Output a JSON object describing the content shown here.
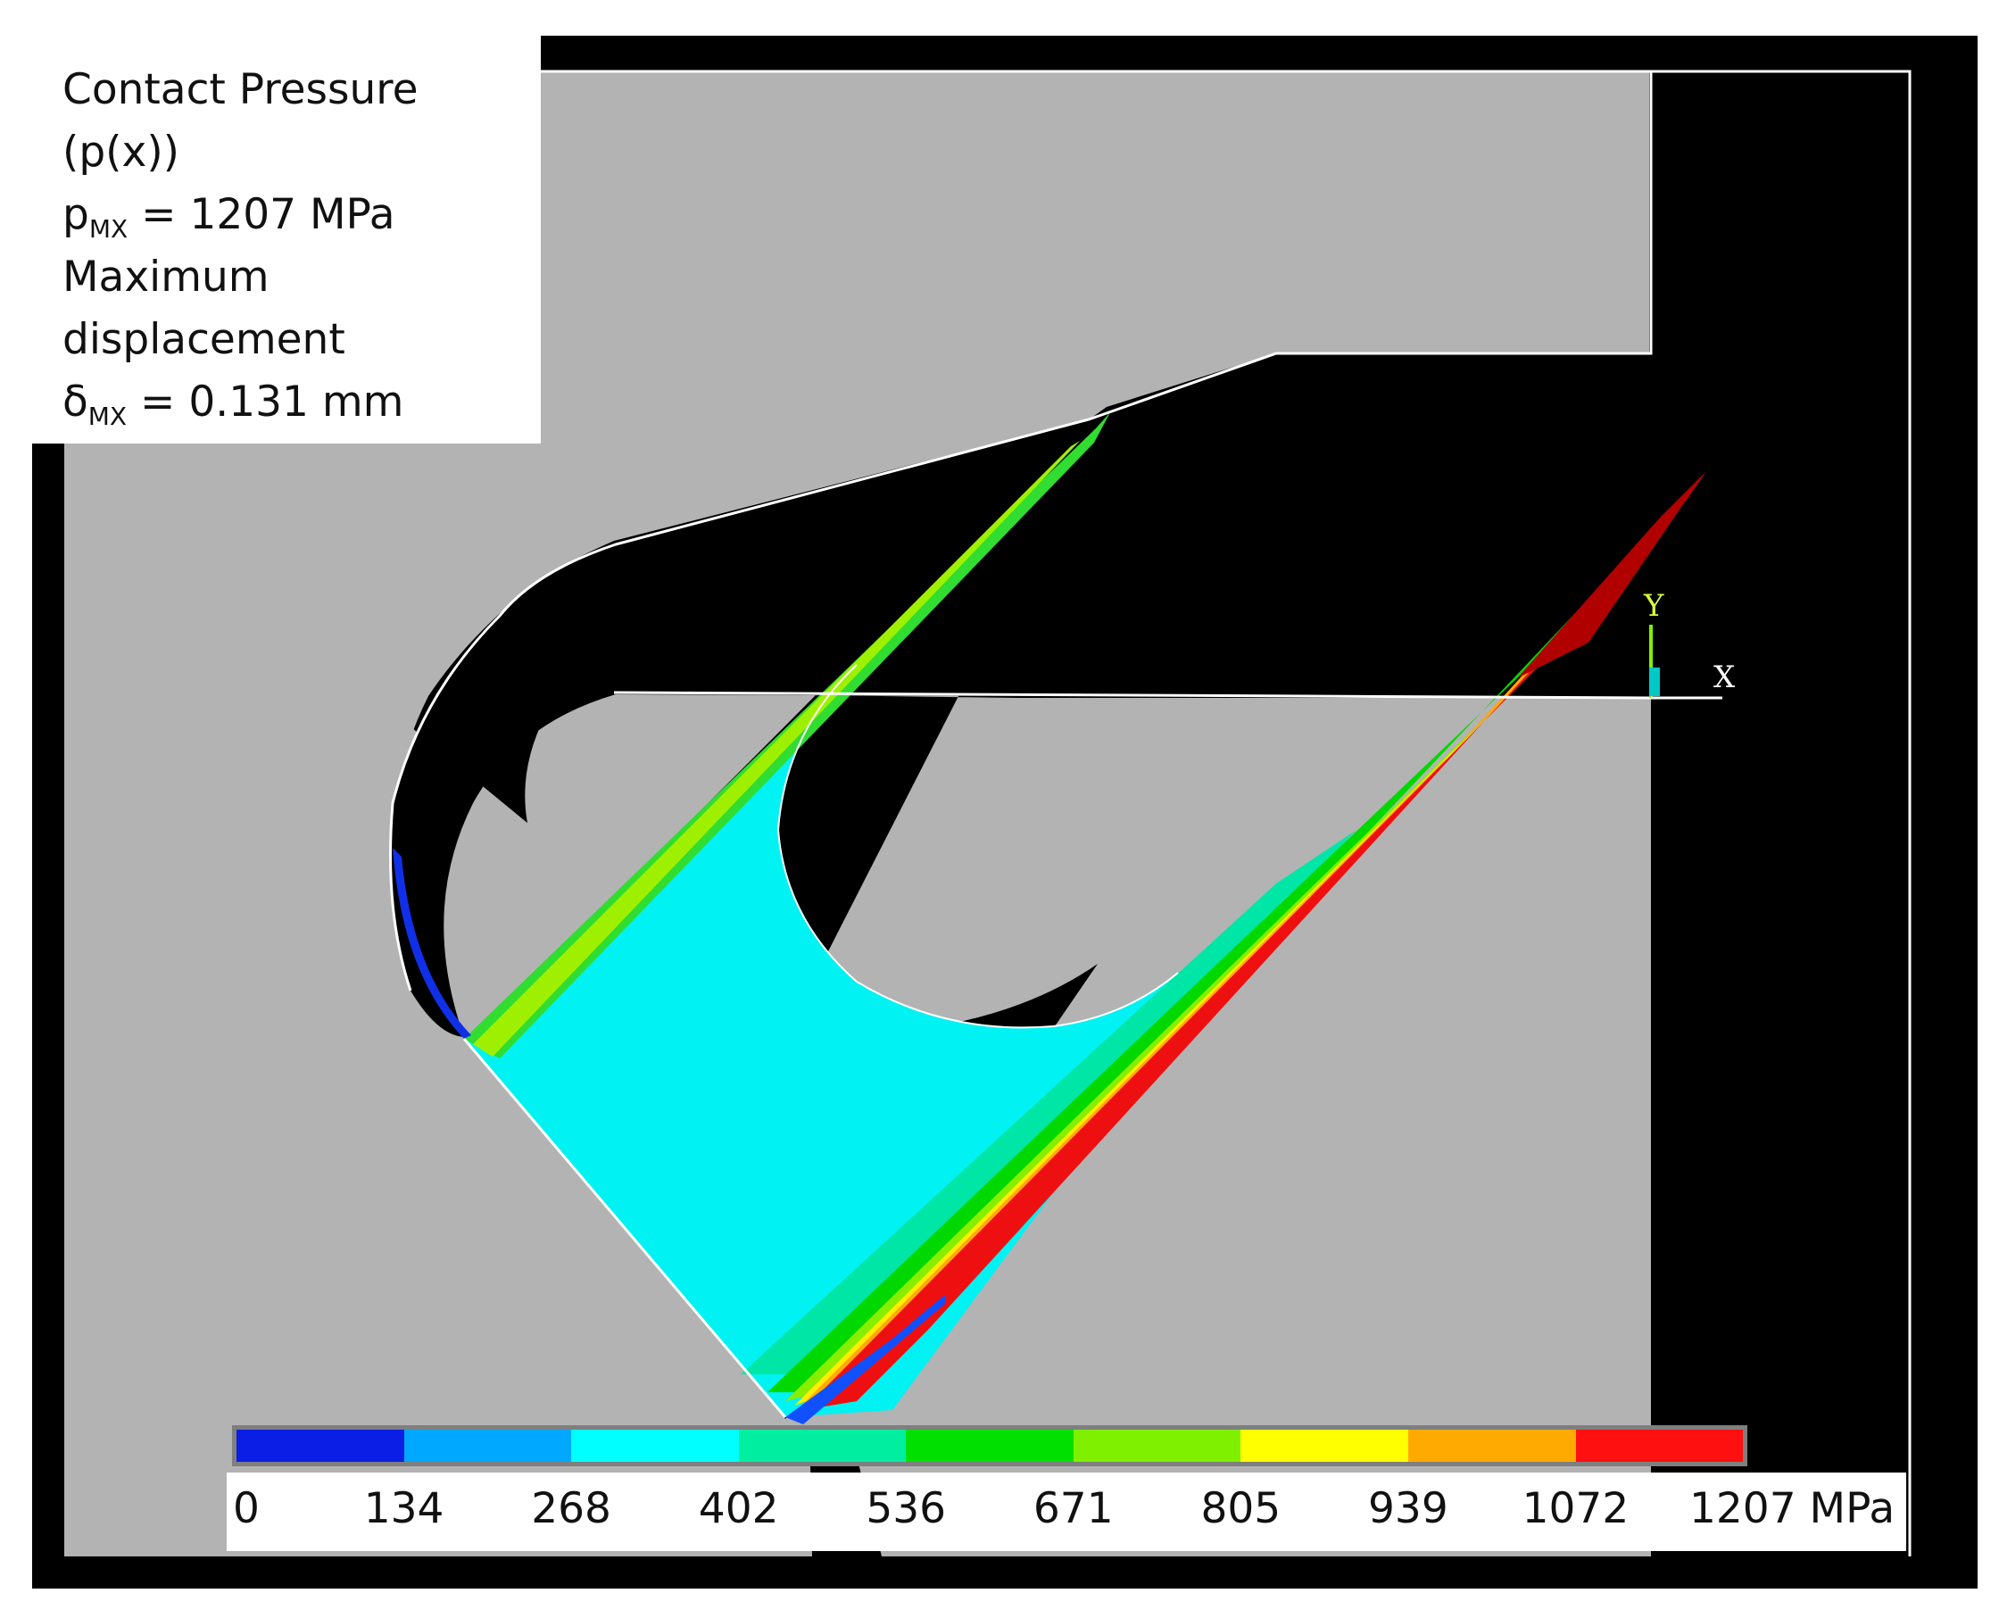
{
  "annotation": {
    "line1": "Contact Pressure",
    "line2": "(p(x))",
    "pmax_symbol": "p",
    "pmax_sub": "MX",
    "pmax_value": " = 1207 MPa",
    "line4": "Maximum",
    "line5": "displacement",
    "delta_symbol": "δ",
    "delta_sub": "MX",
    "delta_value": " = 0.131 mm"
  },
  "legend": {
    "colors": [
      "#0a1ee6",
      "#00a8ff",
      "#00ffff",
      "#00eea0",
      "#00e000",
      "#7ff000",
      "#ffff00",
      "#ffaa00",
      "#ff1010"
    ],
    "ticks": [
      "0",
      "134",
      "268",
      "402",
      "536",
      "671",
      "805",
      "939",
      "1072",
      "1207 MPa"
    ]
  },
  "triad": {
    "y": "Y",
    "x": "X"
  },
  "colors": {
    "background": "#000000",
    "part": "#b3b3b3",
    "edge": "#ffffff"
  }
}
